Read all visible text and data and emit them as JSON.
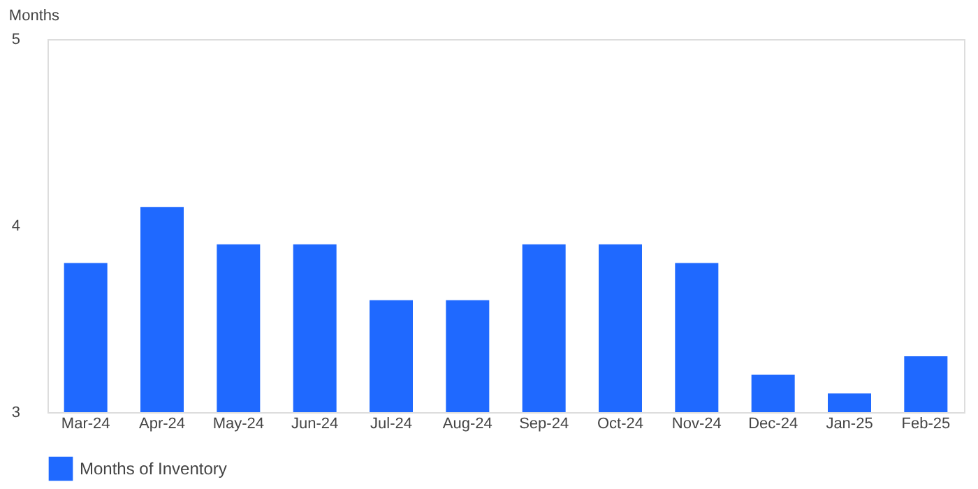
{
  "chart_data": {
    "type": "bar",
    "ylabel": "Months",
    "categories": [
      "Mar-24",
      "Apr-24",
      "May-24",
      "Jun-24",
      "Jul-24",
      "Aug-24",
      "Sep-24",
      "Oct-24",
      "Nov-24",
      "Dec-24",
      "Jan-25",
      "Feb-25"
    ],
    "series": [
      {
        "name": "Months of Inventory",
        "color": "#1f69ff",
        "values": [
          3.8,
          4.1,
          3.9,
          3.9,
          3.6,
          3.6,
          3.9,
          3.9,
          3.8,
          3.2,
          3.1,
          3.3
        ]
      }
    ],
    "ylim": [
      3,
      5
    ],
    "yticks": [
      3,
      4,
      5
    ],
    "grid": false,
    "legend": "bottom"
  }
}
